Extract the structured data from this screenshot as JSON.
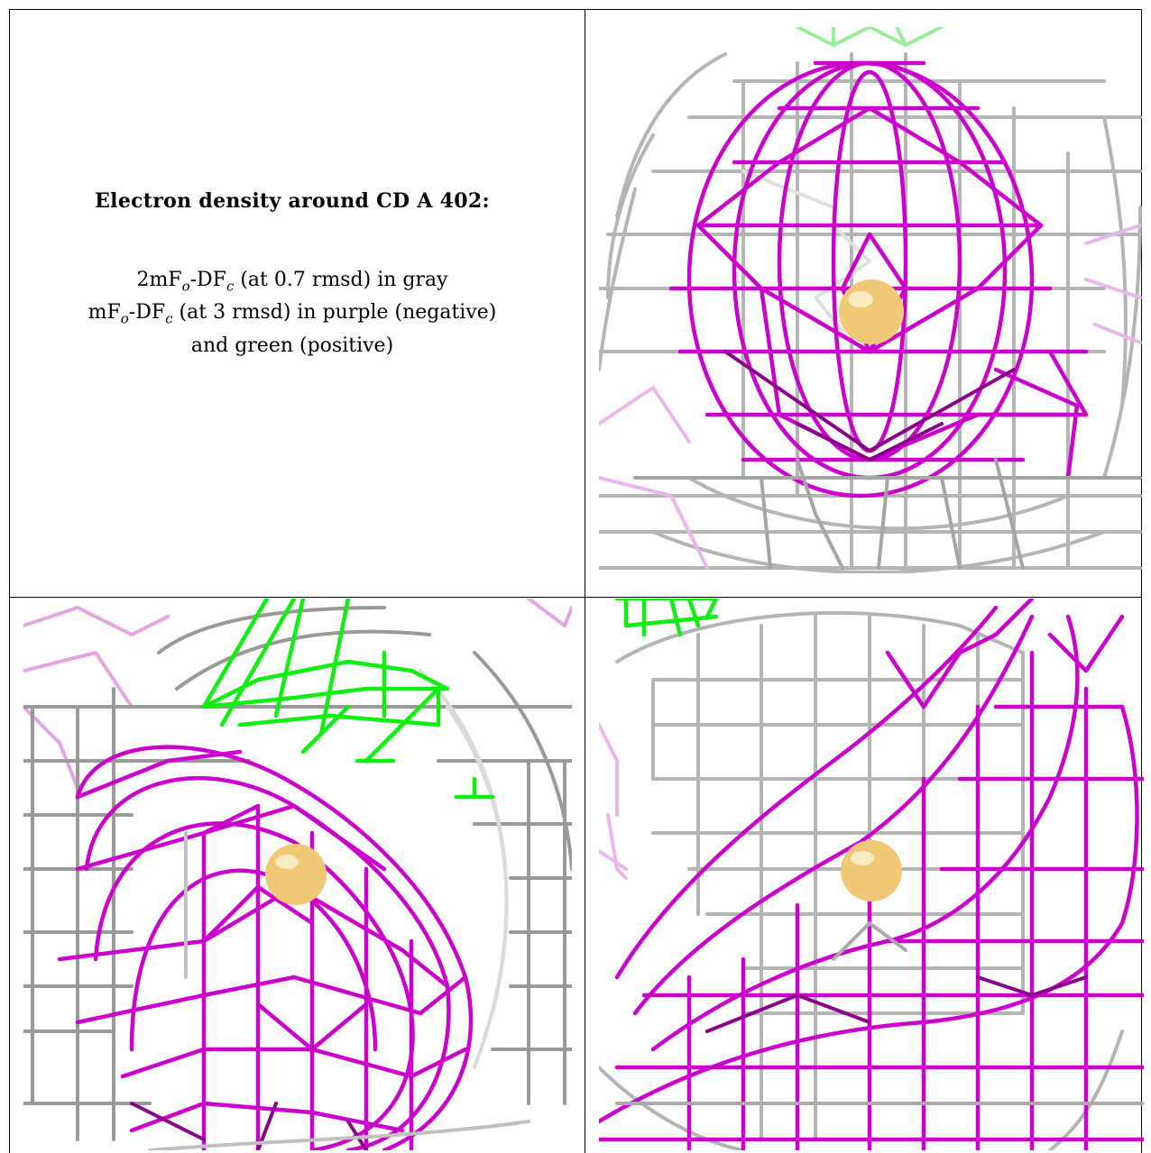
{
  "caption": {
    "title": "Electron density around CD A 402:",
    "line1_prefix": "2mF",
    "line1_sub_o": "o",
    "line1_mid": "-DF",
    "line1_sub_c": "c",
    "line1_suffix": " (at 0.7 rmsd) in gray",
    "line2_prefix": "mF",
    "line2_sub_o": "o",
    "line2_mid": "-DF",
    "line2_sub_c": "c",
    "line2_suffix": " (at 3 rmsd) in purple (negative)",
    "line3": "and green (positive)"
  },
  "colors": {
    "gray_mesh": "#9a9a9a",
    "light_gray_mesh": "#d4d4d4",
    "purple_mesh": "#cc00cc",
    "light_purple_mesh": "#e89ae8",
    "green_mesh": "#22ee22",
    "light_green_mesh": "#99ee99",
    "atom": "#f0c878"
  },
  "panels": [
    {
      "name": "view-1",
      "atom_label": "CD A 402"
    },
    {
      "name": "view-2",
      "atom_label": "CD A 402"
    },
    {
      "name": "view-3",
      "atom_label": "CD A 402"
    }
  ]
}
